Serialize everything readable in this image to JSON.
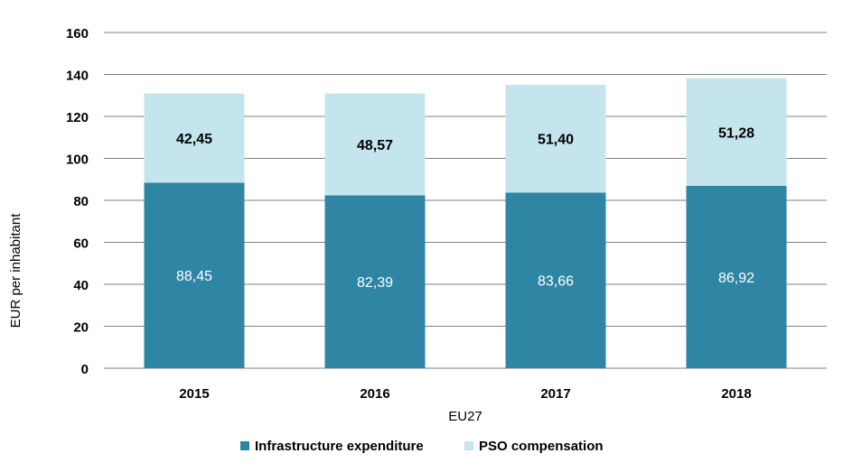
{
  "chart_data": {
    "type": "bar",
    "stacked": true,
    "categories": [
      "2015",
      "2016",
      "2017",
      "2018"
    ],
    "series": [
      {
        "name": "Infrastructure expenditure",
        "values": [
          88.45,
          82.39,
          83.66,
          86.92
        ],
        "labels": [
          "88,45",
          "82,39",
          "83,66",
          "86,92"
        ],
        "color": "#2e86a4"
      },
      {
        "name": "PSO compensation",
        "values": [
          42.45,
          48.57,
          51.4,
          51.28
        ],
        "labels": [
          "42,45",
          "48,57",
          "51,40",
          "51,28"
        ],
        "color": "#c5e5ee"
      }
    ],
    "title": "",
    "xlabel": "EU27",
    "ylabel": "EUR per inhabitant",
    "ylim": [
      0,
      160
    ],
    "yticks": [
      0,
      20,
      40,
      60,
      80,
      100,
      120,
      140,
      160
    ],
    "grid": true,
    "legend": "bottom-center"
  }
}
